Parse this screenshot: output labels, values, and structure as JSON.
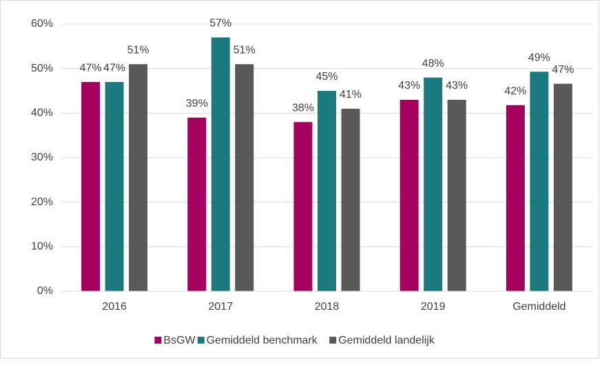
{
  "chart_data": {
    "type": "bar",
    "categories": [
      "2016",
      "2017",
      "2018",
      "2019",
      "Gemiddeld"
    ],
    "series": [
      {
        "name": "BsGW",
        "color": "#a5005f",
        "values": [
          47,
          39,
          38,
          43,
          41.8
        ],
        "value_labels": [
          "47%",
          "39%",
          "38%",
          "43%",
          "42%"
        ]
      },
      {
        "name": "Gemiddeld benchmark",
        "color": "#1b7a7e",
        "values": [
          47,
          57,
          45,
          48,
          49.3
        ],
        "value_labels": [
          "47%",
          "57%",
          "45%",
          "48%",
          "49%"
        ]
      },
      {
        "name": "Gemiddeld landelijk",
        "color": "#595959",
        "values": [
          51,
          51,
          41,
          43,
          46.6
        ],
        "value_labels": [
          "51%",
          "51%",
          "41%",
          "43%",
          "47%"
        ]
      }
    ],
    "ylim": [
      0,
      60
    ],
    "yticks": [
      {
        "value": 0,
        "label": "0%"
      },
      {
        "value": 10,
        "label": "10%"
      },
      {
        "value": 20,
        "label": "20%"
      },
      {
        "value": 30,
        "label": "30%"
      },
      {
        "value": 40,
        "label": "40%"
      },
      {
        "value": 50,
        "label": "50%"
      },
      {
        "value": 60,
        "label": "60%"
      }
    ],
    "grid": true,
    "legend": "bottom"
  }
}
